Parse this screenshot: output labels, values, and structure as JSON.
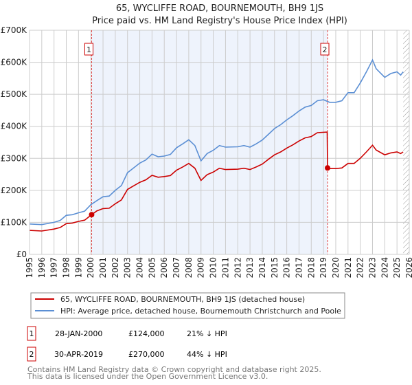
{
  "chart_data": {
    "type": "line",
    "title": "65, WYCLIFFE ROAD, BOURNEMOUTH, BH9 1JS",
    "subtitle": "Price paid vs. HM Land Registry's House Price Index (HPI)",
    "xlim": [
      1995,
      2026
    ],
    "ylim": [
      0,
      700000
    ],
    "grid": true,
    "x_ticks": [
      "1995",
      "1996",
      "1997",
      "1998",
      "1999",
      "2000",
      "2001",
      "2002",
      "2003",
      "2004",
      "2005",
      "2006",
      "2007",
      "2008",
      "2009",
      "2010",
      "2011",
      "2012",
      "2013",
      "2014",
      "2015",
      "2016",
      "2017",
      "2018",
      "2019",
      "2020",
      "2021",
      "2022",
      "2023",
      "2024",
      "2025",
      "2026"
    ],
    "y_ticks": [
      {
        "v": 0,
        "label": "£0"
      },
      {
        "v": 100000,
        "label": "£100K"
      },
      {
        "v": 200000,
        "label": "£200K"
      },
      {
        "v": 300000,
        "label": "£300K"
      },
      {
        "v": 400000,
        "label": "£400K"
      },
      {
        "v": 500000,
        "label": "£500K"
      },
      {
        "v": 600000,
        "label": "£600K"
      },
      {
        "v": 700000,
        "label": "£700K"
      }
    ],
    "shaded_range": [
      2000.07,
      2019.33
    ],
    "forecast_hatch_from": 2025.5,
    "series": [
      {
        "name": "65, WYCLIFFE ROAD, BOURNEMOUTH, BH9 1JS (detached house)",
        "color": "#cc0000",
        "x": [
          1995,
          1996,
          1997,
          1997.5,
          1998,
          1998.5,
          1999,
          1999.5,
          2000.07,
          2000.5,
          2001,
          2001.5,
          2002,
          2002.5,
          2003,
          2003.5,
          2004,
          2004.5,
          2005,
          2005.5,
          2006,
          2006.5,
          2007,
          2007.5,
          2008,
          2008.5,
          2009,
          2009.5,
          2010,
          2010.5,
          2011,
          2012,
          2012.5,
          2013,
          2013.5,
          2014,
          2014.5,
          2015,
          2015.5,
          2016,
          2016.5,
          2017,
          2017.5,
          2018,
          2018.5,
          2019.3,
          2019.33,
          2019.5,
          2020,
          2020.5,
          2021,
          2021.5,
          2022,
          2022.5,
          2023,
          2023.3,
          2024,
          2024.5,
          2025,
          2025.3,
          2025.5
        ],
        "y": [
          75,
          73,
          79,
          84,
          96,
          98,
          103,
          107,
          124,
          136,
          143,
          144,
          158,
          170,
          203,
          214,
          225,
          233,
          247,
          241,
          243,
          246,
          263,
          273,
          284,
          269,
          231,
          249,
          257,
          269,
          265,
          266,
          269,
          265,
          273,
          282,
          297,
          311,
          320,
          332,
          342,
          354,
          364,
          368,
          380,
          382,
          270,
          268,
          268,
          270,
          284,
          284,
          300,
          320,
          341,
          326,
          311,
          317,
          320,
          315,
          320
        ]
      },
      {
        "name": "HPI: Average price, detached house, Bournemouth Christchurch and Poole",
        "color": "#5b8fd4",
        "x": [
          1995,
          1996,
          1997,
          1997.5,
          1998,
          1998.5,
          1999,
          1999.5,
          2000,
          2000.5,
          2001,
          2001.5,
          2002,
          2002.5,
          2003,
          2003.5,
          2004,
          2004.5,
          2005,
          2005.5,
          2006,
          2006.5,
          2007,
          2007.5,
          2008,
          2008.5,
          2009,
          2009.5,
          2010,
          2010.5,
          2011,
          2012,
          2012.5,
          2013,
          2013.5,
          2014,
          2014.5,
          2015,
          2015.5,
          2016,
          2016.5,
          2017,
          2017.5,
          2018,
          2018.5,
          2019,
          2019.5,
          2020,
          2020.5,
          2021,
          2021.5,
          2022,
          2022.5,
          2023,
          2023.3,
          2024,
          2024.5,
          2025,
          2025.3,
          2025.5
        ],
        "y": [
          95,
          93,
          100,
          106,
          122,
          124,
          130,
          135,
          155,
          168,
          180,
          182,
          200,
          215,
          255,
          270,
          285,
          295,
          313,
          305,
          307,
          312,
          333,
          345,
          358,
          340,
          292,
          315,
          325,
          340,
          335,
          336,
          340,
          335,
          345,
          357,
          375,
          393,
          405,
          420,
          433,
          448,
          460,
          465,
          480,
          483,
          475,
          475,
          480,
          505,
          505,
          535,
          570,
          607,
          580,
          553,
          565,
          570,
          560,
          570
        ]
      }
    ],
    "y_unit": "thousands GBP",
    "markers": [
      {
        "label": "1",
        "x": 2000.07,
        "y": 124
      },
      {
        "label": "2",
        "x": 2019.33,
        "y": 270
      }
    ],
    "legend": {
      "placement": "bottom",
      "entries": [
        "65, WYCLIFFE ROAD, BOURNEMOUTH, BH9 1JS (detached house)",
        "HPI: Average price, detached house, Bournemouth Christchurch and Poole"
      ]
    }
  },
  "sales": [
    {
      "num": "1",
      "date": "28-JAN-2000",
      "price": "£124,000",
      "diff": "21% ↓ HPI"
    },
    {
      "num": "2",
      "date": "30-APR-2019",
      "price": "£270,000",
      "diff": "44% ↓ HPI"
    }
  ],
  "footer": [
    "Contains HM Land Registry data © Crown copyright and database right 2025.",
    "This data is licensed under the Open Government Licence v3.0."
  ],
  "colors": {
    "red": "#cc0000",
    "blue": "#5b8fd4",
    "shade": "#eef3fc"
  }
}
